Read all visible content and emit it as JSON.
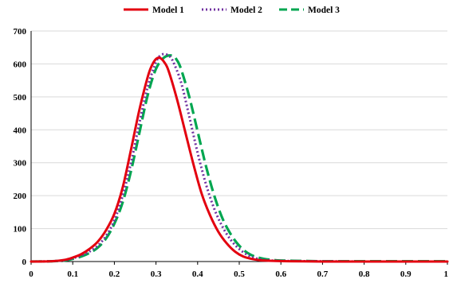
{
  "chart_data": {
    "type": "line",
    "title": "",
    "xlabel": "",
    "ylabel": "",
    "xlim": [
      0,
      1
    ],
    "ylim": [
      0,
      700
    ],
    "xticks": [
      "0",
      "0.1",
      "0.2",
      "0.3",
      "0.4",
      "0.5",
      "0.6",
      "0.7",
      "0.8",
      "0.9",
      "1"
    ],
    "yticks": [
      "0",
      "100",
      "200",
      "300",
      "400",
      "500",
      "600",
      "700"
    ],
    "grid": "horizontal",
    "legend_position": "top",
    "series": [
      {
        "name": "Model 1",
        "color": "#e3000f",
        "style": "solid",
        "x": [
          0,
          0.05,
          0.08,
          0.1,
          0.12,
          0.14,
          0.16,
          0.18,
          0.2,
          0.22,
          0.24,
          0.26,
          0.28,
          0.29,
          0.3,
          0.31,
          0.32,
          0.33,
          0.35,
          0.37,
          0.39,
          0.41,
          0.43,
          0.45,
          0.47,
          0.49,
          0.51,
          0.53,
          0.55,
          0.58,
          0.62,
          0.7,
          0.8,
          0.9,
          1.0
        ],
        "y": [
          0,
          1,
          5,
          12,
          22,
          38,
          60,
          95,
          145,
          225,
          340,
          460,
          560,
          595,
          615,
          618,
          605,
          580,
          495,
          395,
          295,
          205,
          140,
          90,
          55,
          30,
          15,
          8,
          4,
          2,
          1,
          0,
          0,
          0,
          0
        ]
      },
      {
        "name": "Model 2",
        "color": "#7030a0",
        "style": "dotted",
        "x": [
          0,
          0.05,
          0.08,
          0.1,
          0.12,
          0.14,
          0.16,
          0.18,
          0.2,
          0.22,
          0.24,
          0.26,
          0.28,
          0.3,
          0.31,
          0.32,
          0.33,
          0.34,
          0.36,
          0.38,
          0.4,
          0.42,
          0.44,
          0.46,
          0.48,
          0.5,
          0.52,
          0.54,
          0.56,
          0.6,
          0.7,
          0.8,
          0.9,
          1.0
        ],
        "y": [
          0,
          1,
          4,
          10,
          18,
          30,
          48,
          78,
          125,
          200,
          300,
          420,
          530,
          605,
          625,
          630,
          625,
          610,
          545,
          440,
          330,
          235,
          160,
          105,
          65,
          38,
          20,
          10,
          5,
          2,
          1,
          0,
          0,
          0
        ]
      },
      {
        "name": "Model 3",
        "color": "#00a650",
        "style": "dashed",
        "x": [
          0,
          0.05,
          0.08,
          0.1,
          0.12,
          0.14,
          0.16,
          0.18,
          0.2,
          0.22,
          0.24,
          0.26,
          0.28,
          0.3,
          0.32,
          0.34,
          0.35,
          0.36,
          0.38,
          0.4,
          0.42,
          0.44,
          0.46,
          0.48,
          0.5,
          0.52,
          0.54,
          0.56,
          0.58,
          0.6,
          0.65,
          0.7,
          0.8,
          0.9,
          1.0
        ],
        "y": [
          0,
          1,
          3,
          8,
          15,
          26,
          42,
          70,
          115,
          180,
          275,
          390,
          505,
          585,
          620,
          625,
          612,
          585,
          500,
          395,
          290,
          200,
          130,
          82,
          48,
          26,
          14,
          8,
          5,
          3,
          2,
          1,
          1,
          1,
          1
        ]
      }
    ]
  }
}
